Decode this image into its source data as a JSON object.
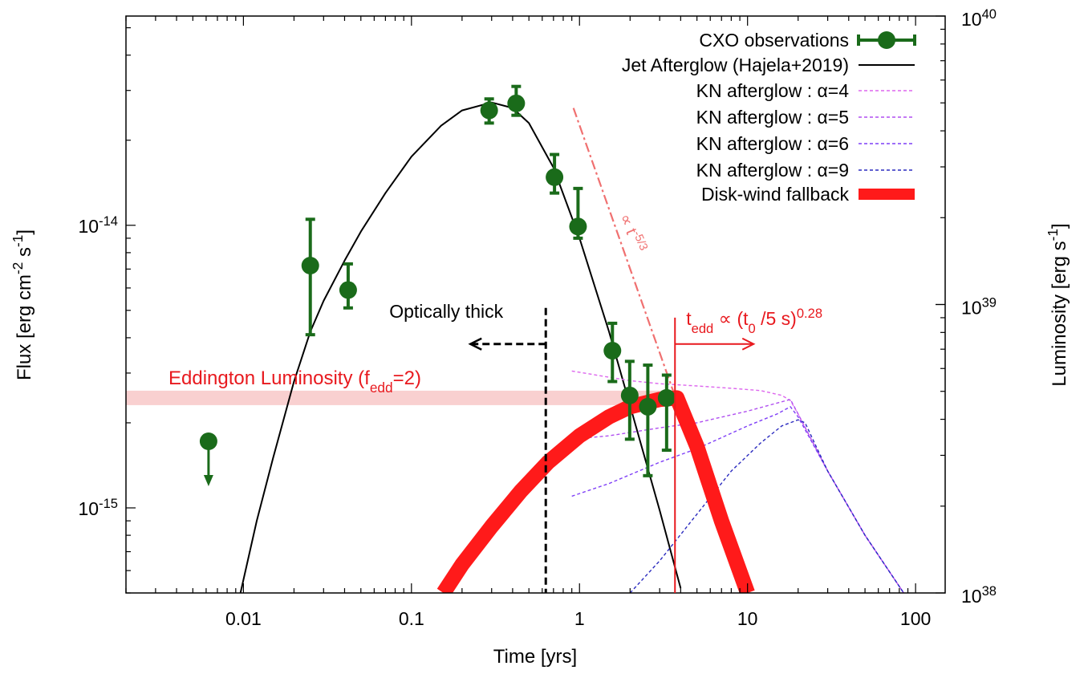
{
  "chart_data": {
    "type": "line",
    "title": "",
    "xlabel": "Time [yrs]",
    "ylabel": "Flux [erg cm⁻² s⁻¹]",
    "ylabel_right": "Luminosity [erg s⁻¹]",
    "x_scale": "log",
    "y_scale": "log",
    "xlim": [
      0.002,
      150
    ],
    "ylim": [
      5e-16,
      5.5e-14
    ],
    "ylim_right": [
      1e+38,
      1e+40
    ],
    "grid": false,
    "legend_position": "top-right",
    "x_ticks": [
      {
        "value": 0.01,
        "label": "0.01"
      },
      {
        "value": 0.1,
        "label": "0.1"
      },
      {
        "value": 1,
        "label": "1"
      },
      {
        "value": 10,
        "label": "10"
      },
      {
        "value": 100,
        "label": "100"
      }
    ],
    "y_ticks": [
      {
        "value": 1e-15,
        "base": "10",
        "exp": "-15"
      },
      {
        "value": 1e-14,
        "base": "10",
        "exp": "-14"
      }
    ],
    "y_ticks_right": [
      {
        "value": 1e+38,
        "base": "10",
        "exp": "38"
      },
      {
        "value": 1e+39,
        "base": "10",
        "exp": "39"
      },
      {
        "value": 1e+40,
        "base": "10",
        "exp": "40"
      }
    ],
    "series": [
      {
        "name": "CXO observations",
        "kind": "errorbar",
        "color": "#1a6b1a",
        "points": [
          {
            "x": 0.025,
            "y": 7.2e-15,
            "ylo": 4.1e-15,
            "yhi": 1.05e-14
          },
          {
            "x": 0.042,
            "y": 5.9e-15,
            "ylo": 5.1e-15,
            "yhi": 7.3e-15
          },
          {
            "x": 0.29,
            "y": 2.55e-14,
            "ylo": 2.3e-14,
            "yhi": 2.8e-14
          },
          {
            "x": 0.42,
            "y": 2.7e-14,
            "ylo": 2.45e-14,
            "yhi": 3.1e-14
          },
          {
            "x": 0.71,
            "y": 1.48e-14,
            "ylo": 1.3e-14,
            "yhi": 1.78e-14
          },
          {
            "x": 0.98,
            "y": 9.9e-15,
            "ylo": 9e-15,
            "yhi": 1.35e-14
          },
          {
            "x": 1.57,
            "y": 3.6e-15,
            "ylo": 2.8e-15,
            "yhi": 4.5e-15
          },
          {
            "x": 1.99,
            "y": 2.5e-15,
            "ylo": 1.75e-15,
            "yhi": 3.3e-15
          },
          {
            "x": 2.55,
            "y": 2.28e-15,
            "ylo": 1.3e-15,
            "yhi": 3.2e-15
          },
          {
            "x": 3.3,
            "y": 2.45e-15,
            "ylo": 1.6e-15,
            "yhi": 2.95e-15
          }
        ],
        "upper_limit": {
          "x": 0.0062,
          "y": 1.72e-15
        }
      },
      {
        "name": "Jet Afterglow (Hajela+2019)",
        "kind": "line",
        "color": "#000000",
        "x": [
          0.0096,
          0.012,
          0.015,
          0.02,
          0.025,
          0.03,
          0.04,
          0.05,
          0.07,
          0.1,
          0.15,
          0.2,
          0.3,
          0.4,
          0.5,
          0.7,
          1.0,
          1.5,
          2.0,
          3.0,
          4.0
        ],
        "y": [
          5e-16,
          9e-16,
          1.5e-15,
          2.8e-15,
          4.2e-15,
          5.4e-15,
          7.5e-15,
          9.5e-15,
          1.3e-14,
          1.75e-14,
          2.25e-14,
          2.55e-14,
          2.72e-14,
          2.6e-14,
          2.3e-14,
          1.6e-14,
          9e-15,
          4.2e-15,
          2.3e-15,
          9.8e-16,
          5.2e-16
        ]
      },
      {
        "name": "KN afterglow : α=4",
        "kind": "dashed",
        "color": "#dd66ee",
        "x": [
          0.9,
          1.5,
          2,
          3,
          5,
          8,
          12,
          16,
          18,
          20,
          30,
          50,
          85
        ],
        "y": [
          3.05e-15,
          2.9e-15,
          2.82e-15,
          2.75e-15,
          2.7e-15,
          2.65e-15,
          2.6e-15,
          2.5e-15,
          2.4e-15,
          2.15e-15,
          1.35e-15,
          8e-16,
          5e-16
        ]
      },
      {
        "name": "KN afterglow : α=5",
        "kind": "dashed",
        "color": "#b04ff0",
        "x": [
          0.9,
          1.5,
          3,
          5,
          10,
          15,
          18,
          20,
          30,
          50,
          85
        ],
        "y": [
          1.75e-15,
          1.8e-15,
          1.92e-15,
          2e-15,
          2.2e-15,
          2.35e-15,
          2.42e-15,
          2.15e-15,
          1.35e-15,
          8e-16,
          5e-16
        ]
      },
      {
        "name": "KN afterglow : α=6",
        "kind": "dashed",
        "color": "#7f3ff7",
        "x": [
          0.9,
          1.5,
          3,
          5,
          10,
          15,
          18,
          20,
          30,
          50,
          85
        ],
        "y": [
          1.1e-15,
          1.22e-15,
          1.45e-15,
          1.62e-15,
          1.95e-15,
          2.15e-15,
          2.28e-15,
          2.1e-15,
          1.35e-15,
          8e-16,
          5e-16
        ]
      },
      {
        "name": "KN afterglow : α=9",
        "kind": "dashed",
        "color": "#2b2bbf",
        "x": [
          2.0,
          3,
          5,
          8,
          12,
          16,
          20,
          22,
          30,
          50,
          85
        ],
        "y": [
          5e-16,
          6.5e-16,
          9.5e-16,
          1.35e-15,
          1.7e-15,
          1.95e-15,
          2.05e-15,
          2e-15,
          1.35e-15,
          8e-16,
          5e-16
        ]
      },
      {
        "name": "Disk-wind fallback",
        "kind": "thick",
        "color": "#ff1a1a",
        "x": [
          0.155,
          0.2,
          0.3,
          0.45,
          0.65,
          1.0,
          1.5,
          2.0,
          3.0,
          3.8,
          5.0,
          7.0,
          10.0
        ],
        "y": [
          5e-16,
          6.3e-16,
          8.6e-16,
          1.15e-15,
          1.45e-15,
          1.8e-15,
          2.1e-15,
          2.28e-15,
          2.42e-15,
          2.45e-15,
          1.65e-15,
          9e-16,
          5e-16
        ]
      },
      {
        "kind": "dashdot",
        "color": "#f07070",
        "x": [
          0.92,
          3.6
        ],
        "y": [
          2.6e-14,
          2.6e-15
        ]
      }
    ],
    "annotations": {
      "eddington": {
        "text": "Eddington Luminosity (f",
        "sub": "edd",
        "after": "=2)",
        "y": 2.45e-15,
        "color": "#e8191e",
        "band_color": "#f9d0d0"
      },
      "optically_thick": {
        "text": "Optically thick",
        "x": 0.63,
        "y_top": 5.1e-15,
        "y_arrow": 3.8e-15
      },
      "tedd": {
        "t": "t",
        "sub": "edd",
        "mid": " ∝ (t",
        "sub2": "0",
        "mid2": " /5 s)",
        "sup": "0.28",
        "x": 3.7,
        "y_arrow": 3.8e-15,
        "color": "#e8191e"
      },
      "slope": {
        "text": "∝ t",
        "sup": "-5/3",
        "color": "#f07070"
      }
    }
  }
}
